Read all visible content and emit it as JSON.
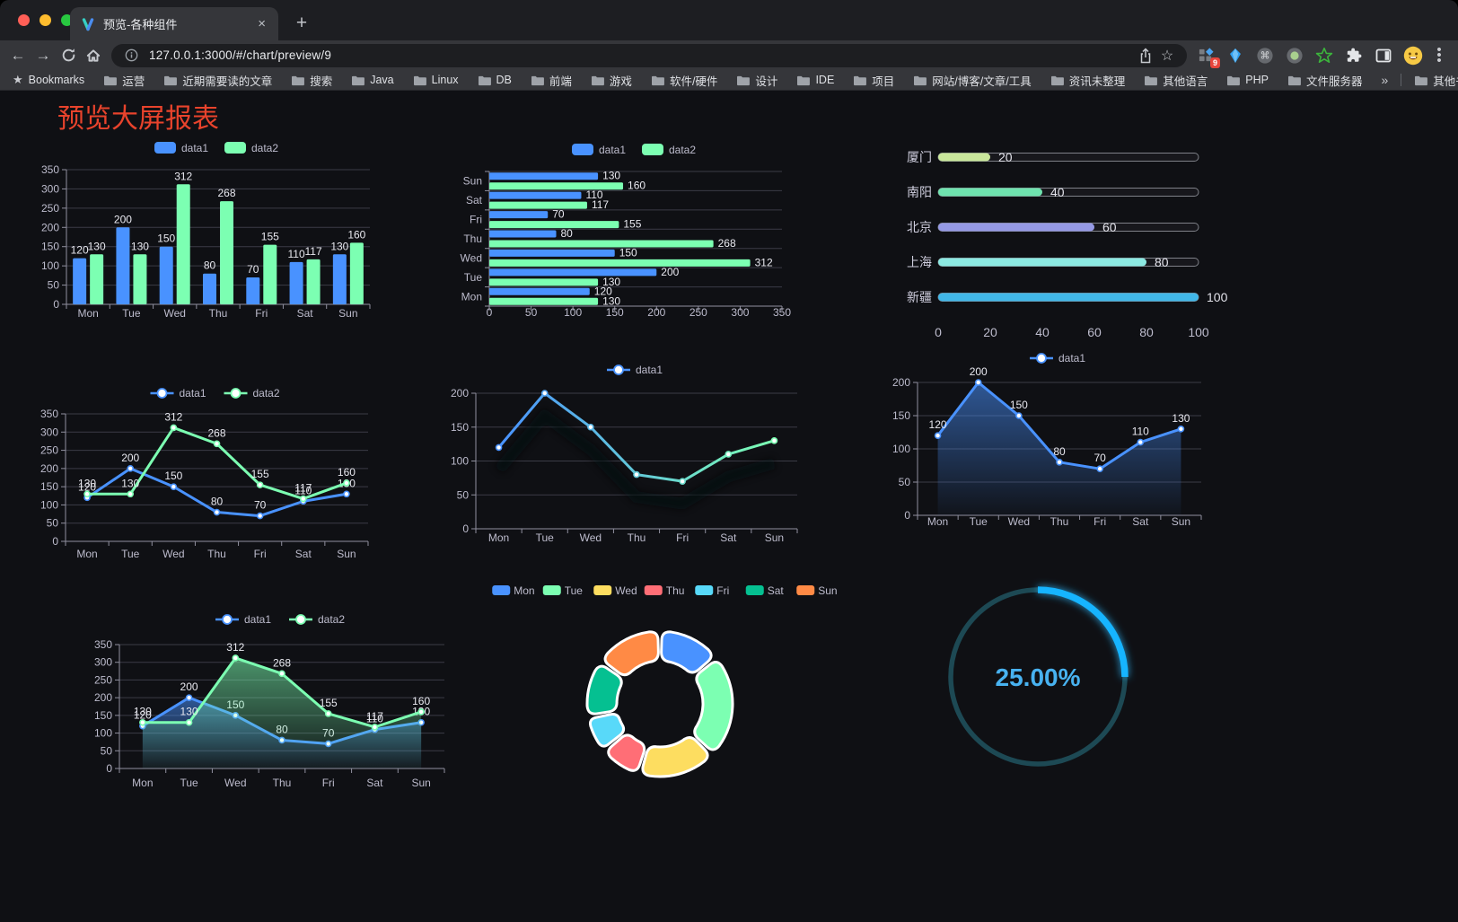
{
  "browser": {
    "tab": {
      "title": "预览-各种组件",
      "close": "×"
    },
    "new_tab_button": "+",
    "url": "127.0.0.1:3000/#/chart/preview/9",
    "extension_badge": "9",
    "bookmarks_bar": {
      "star_label": "Bookmarks",
      "folders": [
        "运营",
        "近期需要读的文章",
        "搜索",
        "Java",
        "Linux",
        "DB",
        "前端",
        "游戏",
        "软件/硬件",
        "设计",
        "IDE",
        "项目",
        "网站/博客/文章/工具",
        "资讯未整理",
        "其他语言",
        "PHP",
        "文件服务器"
      ],
      "overflow": "»",
      "other": "其他书签"
    }
  },
  "page": {
    "title": "预览大屏报表",
    "title_color": "#e8432c",
    "background": "#0f1014"
  },
  "palette": {
    "data1": "#4992ff",
    "data2": "#7cffb2"
  },
  "chart_data": [
    {
      "id": "bar-vertical",
      "type": "bar",
      "legend_position": "top",
      "grid": true,
      "value_labels": true,
      "categories": [
        "Mon",
        "Tue",
        "Wed",
        "Thu",
        "Fri",
        "Sat",
        "Sun"
      ],
      "series": [
        {
          "name": "data1",
          "color": "#4992ff",
          "values": [
            120,
            200,
            150,
            80,
            70,
            110,
            130
          ]
        },
        {
          "name": "data2",
          "color": "#7cffb2",
          "values": [
            130,
            130,
            312,
            268,
            155,
            117,
            160
          ]
        }
      ],
      "ylim": [
        0,
        350
      ],
      "yticks": [
        0,
        50,
        100,
        150,
        200,
        250,
        300,
        350
      ]
    },
    {
      "id": "bar-horizontal",
      "type": "bar-horizontal",
      "legend_position": "top",
      "grid": true,
      "value_labels": true,
      "categories": [
        "Mon",
        "Tue",
        "Wed",
        "Thu",
        "Fri",
        "Sat",
        "Sun"
      ],
      "series": [
        {
          "name": "data1",
          "color": "#4992ff",
          "values": [
            120,
            200,
            150,
            80,
            70,
            110,
            130
          ]
        },
        {
          "name": "data2",
          "color": "#7cffb2",
          "values": [
            130,
            130,
            312,
            268,
            155,
            117,
            160
          ]
        }
      ],
      "xlim": [
        0,
        350
      ],
      "xticks": [
        0,
        50,
        100,
        150,
        200,
        250,
        300,
        350
      ]
    },
    {
      "id": "city-progress",
      "type": "progress",
      "max": 100,
      "ticks": [
        0,
        20,
        40,
        60,
        80,
        100
      ],
      "items": [
        {
          "label": "厦门",
          "value": 20,
          "color": "#c9e79b"
        },
        {
          "label": "南阳",
          "value": 40,
          "color": "#6fe3af"
        },
        {
          "label": "北京",
          "value": 60,
          "color": "#9599e5"
        },
        {
          "label": "上海",
          "value": 80,
          "color": "#8ce9e2"
        },
        {
          "label": "新疆",
          "value": 100,
          "color": "#41b7e8"
        }
      ]
    },
    {
      "id": "line-two-series",
      "type": "line",
      "legend_position": "top",
      "grid": true,
      "value_labels": true,
      "categories": [
        "Mon",
        "Tue",
        "Wed",
        "Thu",
        "Fri",
        "Sat",
        "Sun"
      ],
      "series": [
        {
          "name": "data1",
          "color": "#4992ff",
          "values": [
            120,
            200,
            150,
            80,
            70,
            110,
            130
          ]
        },
        {
          "name": "data2",
          "color": "#7cffb2",
          "values": [
            130,
            130,
            312,
            268,
            155,
            117,
            160
          ]
        }
      ],
      "ylim": [
        0,
        350
      ],
      "yticks": [
        0,
        50,
        100,
        150,
        200,
        250,
        300,
        350
      ]
    },
    {
      "id": "line-gradient",
      "type": "line-gradient",
      "legend_position": "top",
      "grid": true,
      "value_labels": false,
      "categories": [
        "Mon",
        "Tue",
        "Wed",
        "Thu",
        "Fri",
        "Sat",
        "Sun"
      ],
      "series": [
        {
          "name": "data1",
          "gradient": [
            "#4992ff",
            "#7cffb2"
          ],
          "values": [
            120,
            200,
            150,
            80,
            70,
            110,
            130
          ]
        }
      ],
      "ylim": [
        0,
        200
      ],
      "yticks": [
        0,
        50,
        100,
        150,
        200
      ]
    },
    {
      "id": "area-single",
      "type": "area",
      "legend_position": "top",
      "grid": true,
      "value_labels": true,
      "categories": [
        "Mon",
        "Tue",
        "Wed",
        "Thu",
        "Fri",
        "Sat",
        "Sun"
      ],
      "series": [
        {
          "name": "data1",
          "color": "#4992ff",
          "values": [
            120,
            200,
            150,
            80,
            70,
            110,
            130
          ]
        }
      ],
      "ylim": [
        0,
        200
      ],
      "yticks": [
        0,
        50,
        100,
        150,
        200
      ]
    },
    {
      "id": "area-two-series",
      "type": "area",
      "legend_position": "top",
      "grid": true,
      "value_labels": true,
      "categories": [
        "Mon",
        "Tue",
        "Wed",
        "Thu",
        "Fri",
        "Sat",
        "Sun"
      ],
      "series": [
        {
          "name": "data1",
          "color": "#4992ff",
          "values": [
            120,
            200,
            150,
            80,
            70,
            110,
            130
          ]
        },
        {
          "name": "data2",
          "color": "#7cffb2",
          "values": [
            130,
            130,
            312,
            268,
            155,
            117,
            160
          ]
        }
      ],
      "ylim": [
        0,
        350
      ],
      "yticks": [
        0,
        50,
        100,
        150,
        200,
        250,
        300,
        350
      ]
    },
    {
      "id": "weekday-pie",
      "type": "pie",
      "legend_position": "top",
      "categories": [
        "Mon",
        "Tue",
        "Wed",
        "Thu",
        "Fri",
        "Sat",
        "Sun"
      ],
      "values": [
        120,
        200,
        150,
        80,
        70,
        110,
        130
      ],
      "colors": [
        "#4992ff",
        "#7cffb2",
        "#fddd60",
        "#ff6e76",
        "#58d9f9",
        "#05c091",
        "#ff8a45"
      ]
    },
    {
      "id": "percent-gauge",
      "type": "gauge",
      "value": 25,
      "max": 100,
      "label": "25.00%",
      "color": "#18b4ff",
      "track_color": "#1d4954",
      "text_color": "#48b2f0"
    }
  ]
}
